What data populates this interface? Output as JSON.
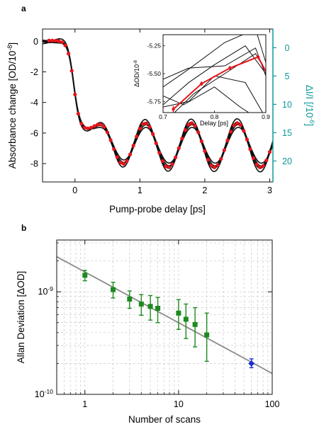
{
  "colors": {
    "black": "#111111",
    "red": "#e8141a",
    "teal": "#0c9a9a",
    "green": "#1d8a1d",
    "blue": "#1c2fd6",
    "fit": "#8c8c8c",
    "grid": "#c8c8c8"
  },
  "chart_data": [
    {
      "panel": "a",
      "type": "line",
      "xlabel": "Pump-probe delay [ps]",
      "ylabel": "Absorbance change [OD/10",
      "ylabel_exp": "-8",
      "ylabel_end": "]",
      "y2label": "ΔI/I [/10",
      "y2label_exp": "-6",
      "y2label_end": "]",
      "xlim": [
        -0.5,
        3.05
      ],
      "ylim": [
        -9.2,
        0.8
      ],
      "y2lim": [
        -3.3,
        23.7
      ],
      "xticks": [
        0,
        1,
        2,
        3
      ],
      "xtick_labels": [
        "0",
        "1",
        "2",
        "3"
      ],
      "yticks": [
        0,
        -2,
        -4,
        -6,
        -8
      ],
      "ytick_labels": [
        "0",
        "-2",
        "-4",
        "-6",
        "-8"
      ],
      "y2ticks": [
        0,
        5,
        10,
        15,
        20
      ],
      "y2tick_labels": [
        "0",
        "5",
        "10",
        "15",
        "20"
      ],
      "grid": false,
      "signal": {
        "pre_level": 0.05,
        "step_center": -0.02,
        "step_width": 0.045,
        "step_depth": 5.5,
        "offset": 1.3,
        "osc_rise": 0.14,
        "osc_shift": 0.4,
        "amplitude": 1.45,
        "period": 0.71,
        "phase": 0.55,
        "amplitude_growth": 0.0
      },
      "red_markers_x": [
        -0.4,
        -0.35,
        -0.3,
        -0.25,
        -0.2,
        -0.15,
        -0.1,
        -0.05,
        0.0,
        0.05,
        0.1,
        0.15,
        0.2,
        0.25,
        0.3,
        0.35,
        0.4,
        0.45,
        0.5,
        0.55,
        0.6,
        0.65,
        0.7,
        0.75,
        0.8,
        0.85,
        0.9,
        0.95,
        1.0,
        1.05,
        1.1,
        1.15,
        1.2,
        1.25,
        1.3,
        1.35,
        1.4,
        1.45,
        1.5,
        1.55,
        1.6,
        1.65,
        1.7,
        1.75,
        1.8,
        1.85,
        1.9,
        1.95,
        2.0,
        2.05,
        2.1,
        2.15,
        2.2,
        2.25,
        2.3,
        2.35,
        2.4,
        2.45,
        2.5,
        2.55,
        2.6,
        2.65,
        2.7,
        2.75,
        2.8,
        2.85,
        2.9,
        2.95,
        3.0
      ],
      "inset": {
        "xlabel": "Delay [ps]",
        "ylabel": "ΔOD/10",
        "ylabel_exp": "-8",
        "xlim": [
          0.7,
          0.9
        ],
        "ylim": [
          -5.85,
          -5.15
        ],
        "xticks": [
          0.7,
          0.8,
          0.9
        ],
        "xtick_labels": [
          "0.7",
          "0.8",
          "0.9"
        ],
        "yticks": [
          -5.25,
          -5.5,
          -5.75
        ],
        "ytick_labels": [
          "-5.25",
          "-5.50",
          "-5.75"
        ],
        "black_scans": [
          {
            "x": [
              0.7,
              0.75,
              0.82,
              0.88,
              0.9
            ],
            "y": [
              -5.55,
              -5.45,
              -5.43,
              -5.27,
              -5.52
            ]
          },
          {
            "x": [
              0.7,
              0.75,
              0.82,
              0.88,
              0.9
            ],
            "y": [
              -5.62,
              -5.46,
              -5.22,
              -5.1,
              -5.4
            ]
          },
          {
            "x": [
              0.7,
              0.75,
              0.8,
              0.86,
              0.9
            ],
            "y": [
              -5.78,
              -5.58,
              -5.42,
              -5.25,
              -5.5
            ]
          },
          {
            "x": [
              0.7,
              0.76,
              0.82,
              0.88,
              0.9
            ],
            "y": [
              -5.95,
              -5.68,
              -5.5,
              -5.32,
              -5.48
            ]
          },
          {
            "x": [
              0.7,
              0.75,
              0.8,
              0.86,
              0.9
            ],
            "y": [
              -5.8,
              -5.75,
              -5.52,
              -5.58,
              -5.9
            ]
          },
          {
            "x": [
              0.7,
              0.74,
              0.8,
              0.85,
              0.9
            ],
            "y": [
              -5.7,
              -5.78,
              -5.62,
              -5.8,
              -5.95
            ]
          }
        ],
        "mean": {
          "x": [
            0.72,
            0.775,
            0.83,
            0.885,
            0.9
          ],
          "y": [
            -5.82,
            -5.59,
            -5.45,
            -5.35,
            -5.48
          ],
          "err": [
            0.03,
            0.02,
            0.02,
            0.02,
            0.0
          ]
        }
      }
    },
    {
      "panel": "b",
      "type": "scatter",
      "xlabel": "Number of scans",
      "ylabel": "Allan Deviation [ΔOD]",
      "xscale": "log",
      "yscale": "log",
      "xlim": [
        0.5,
        100
      ],
      "ylim": [
        1e-10,
        3.2e-09
      ],
      "xticks": [
        1,
        10,
        100
      ],
      "xtick_labels": [
        "1",
        "10",
        "100"
      ],
      "yticks": [
        1e-10,
        1e-09
      ],
      "ytick_labels": [
        {
          "base": "10",
          "exp": "-10"
        },
        {
          "base": "10",
          "exp": "-9"
        }
      ],
      "grid": true,
      "fit_line": {
        "x": [
          0.5,
          100
        ],
        "y": [
          2.2e-09,
          1.6e-10
        ]
      },
      "series": [
        {
          "x": [
            1,
            2,
            3,
            4,
            5,
            6,
            10,
            12,
            15,
            20
          ],
          "y": [
            1.45e-09,
            1.05e-09,
            8.5e-10,
            7.6e-10,
            7.2e-10,
            6.9e-10,
            6.2e-10,
            5.4e-10,
            4.8e-10,
            3.8e-10
          ],
          "y_low": [
            1.28e-09,
            8.7e-10,
            6.9e-10,
            5.9e-10,
            5.3e-10,
            5e-10,
            4.3e-10,
            3.5e-10,
            2.9e-10,
            2.1e-10
          ],
          "y_high": [
            1.62e-09,
            1.24e-09,
            1.02e-09,
            9.4e-10,
            9.2e-10,
            8.8e-10,
            8.4e-10,
            7.6e-10,
            7e-10,
            6.2e-10
          ],
          "marker": "square"
        },
        {
          "x": [
            60
          ],
          "y": [
            2e-10
          ],
          "y_low": [
            1.82e-10
          ],
          "y_high": [
            2.22e-10
          ],
          "marker": "diamond"
        }
      ]
    }
  ]
}
